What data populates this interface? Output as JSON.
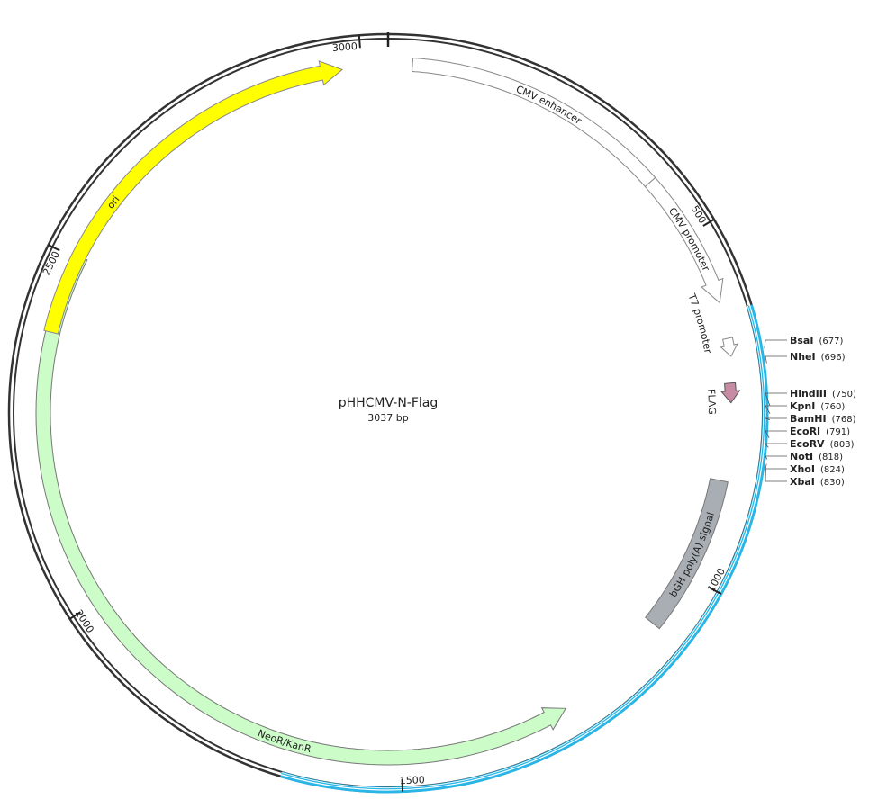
{
  "map": {
    "name": "pHHCMV-N-Flag",
    "length": {
      "value": 3037,
      "label": "3037 bp"
    },
    "ticks": [
      500,
      1000,
      1500,
      2000,
      2500,
      3000
    ],
    "features": [
      {
        "label": "CMV enhancer"
      },
      {
        "label": "CMV promoter"
      },
      {
        "label": "T7 promoter"
      },
      {
        "label": "FLAG"
      },
      {
        "label": "bGH poly(A) signal"
      },
      {
        "label": "NeoR/KanR"
      },
      {
        "label": "ori"
      }
    ],
    "sites": [
      {
        "name": "BsaI",
        "position": {
          "value": 677,
          "label": "(677)"
        }
      },
      {
        "name": "NheI",
        "position": {
          "value": 696,
          "label": "(696)"
        }
      },
      {
        "name": "HindIII",
        "position": {
          "value": 750,
          "label": "(750)"
        }
      },
      {
        "name": "KpnI",
        "position": {
          "value": 760,
          "label": "(760)"
        }
      },
      {
        "name": "BamHI",
        "position": {
          "value": 768,
          "label": "(768)"
        }
      },
      {
        "name": "EcoRI",
        "position": {
          "value": 791,
          "label": "(791)"
        }
      },
      {
        "name": "EcoRV",
        "position": {
          "value": 803,
          "label": "(803)"
        }
      },
      {
        "name": "NotI",
        "position": {
          "value": 818,
          "label": "(818)"
        }
      },
      {
        "name": "XhoI",
        "position": {
          "value": 824,
          "label": "(824)"
        }
      },
      {
        "name": "XbaI",
        "position": {
          "value": 830,
          "label": "(830)"
        }
      }
    ]
  }
}
